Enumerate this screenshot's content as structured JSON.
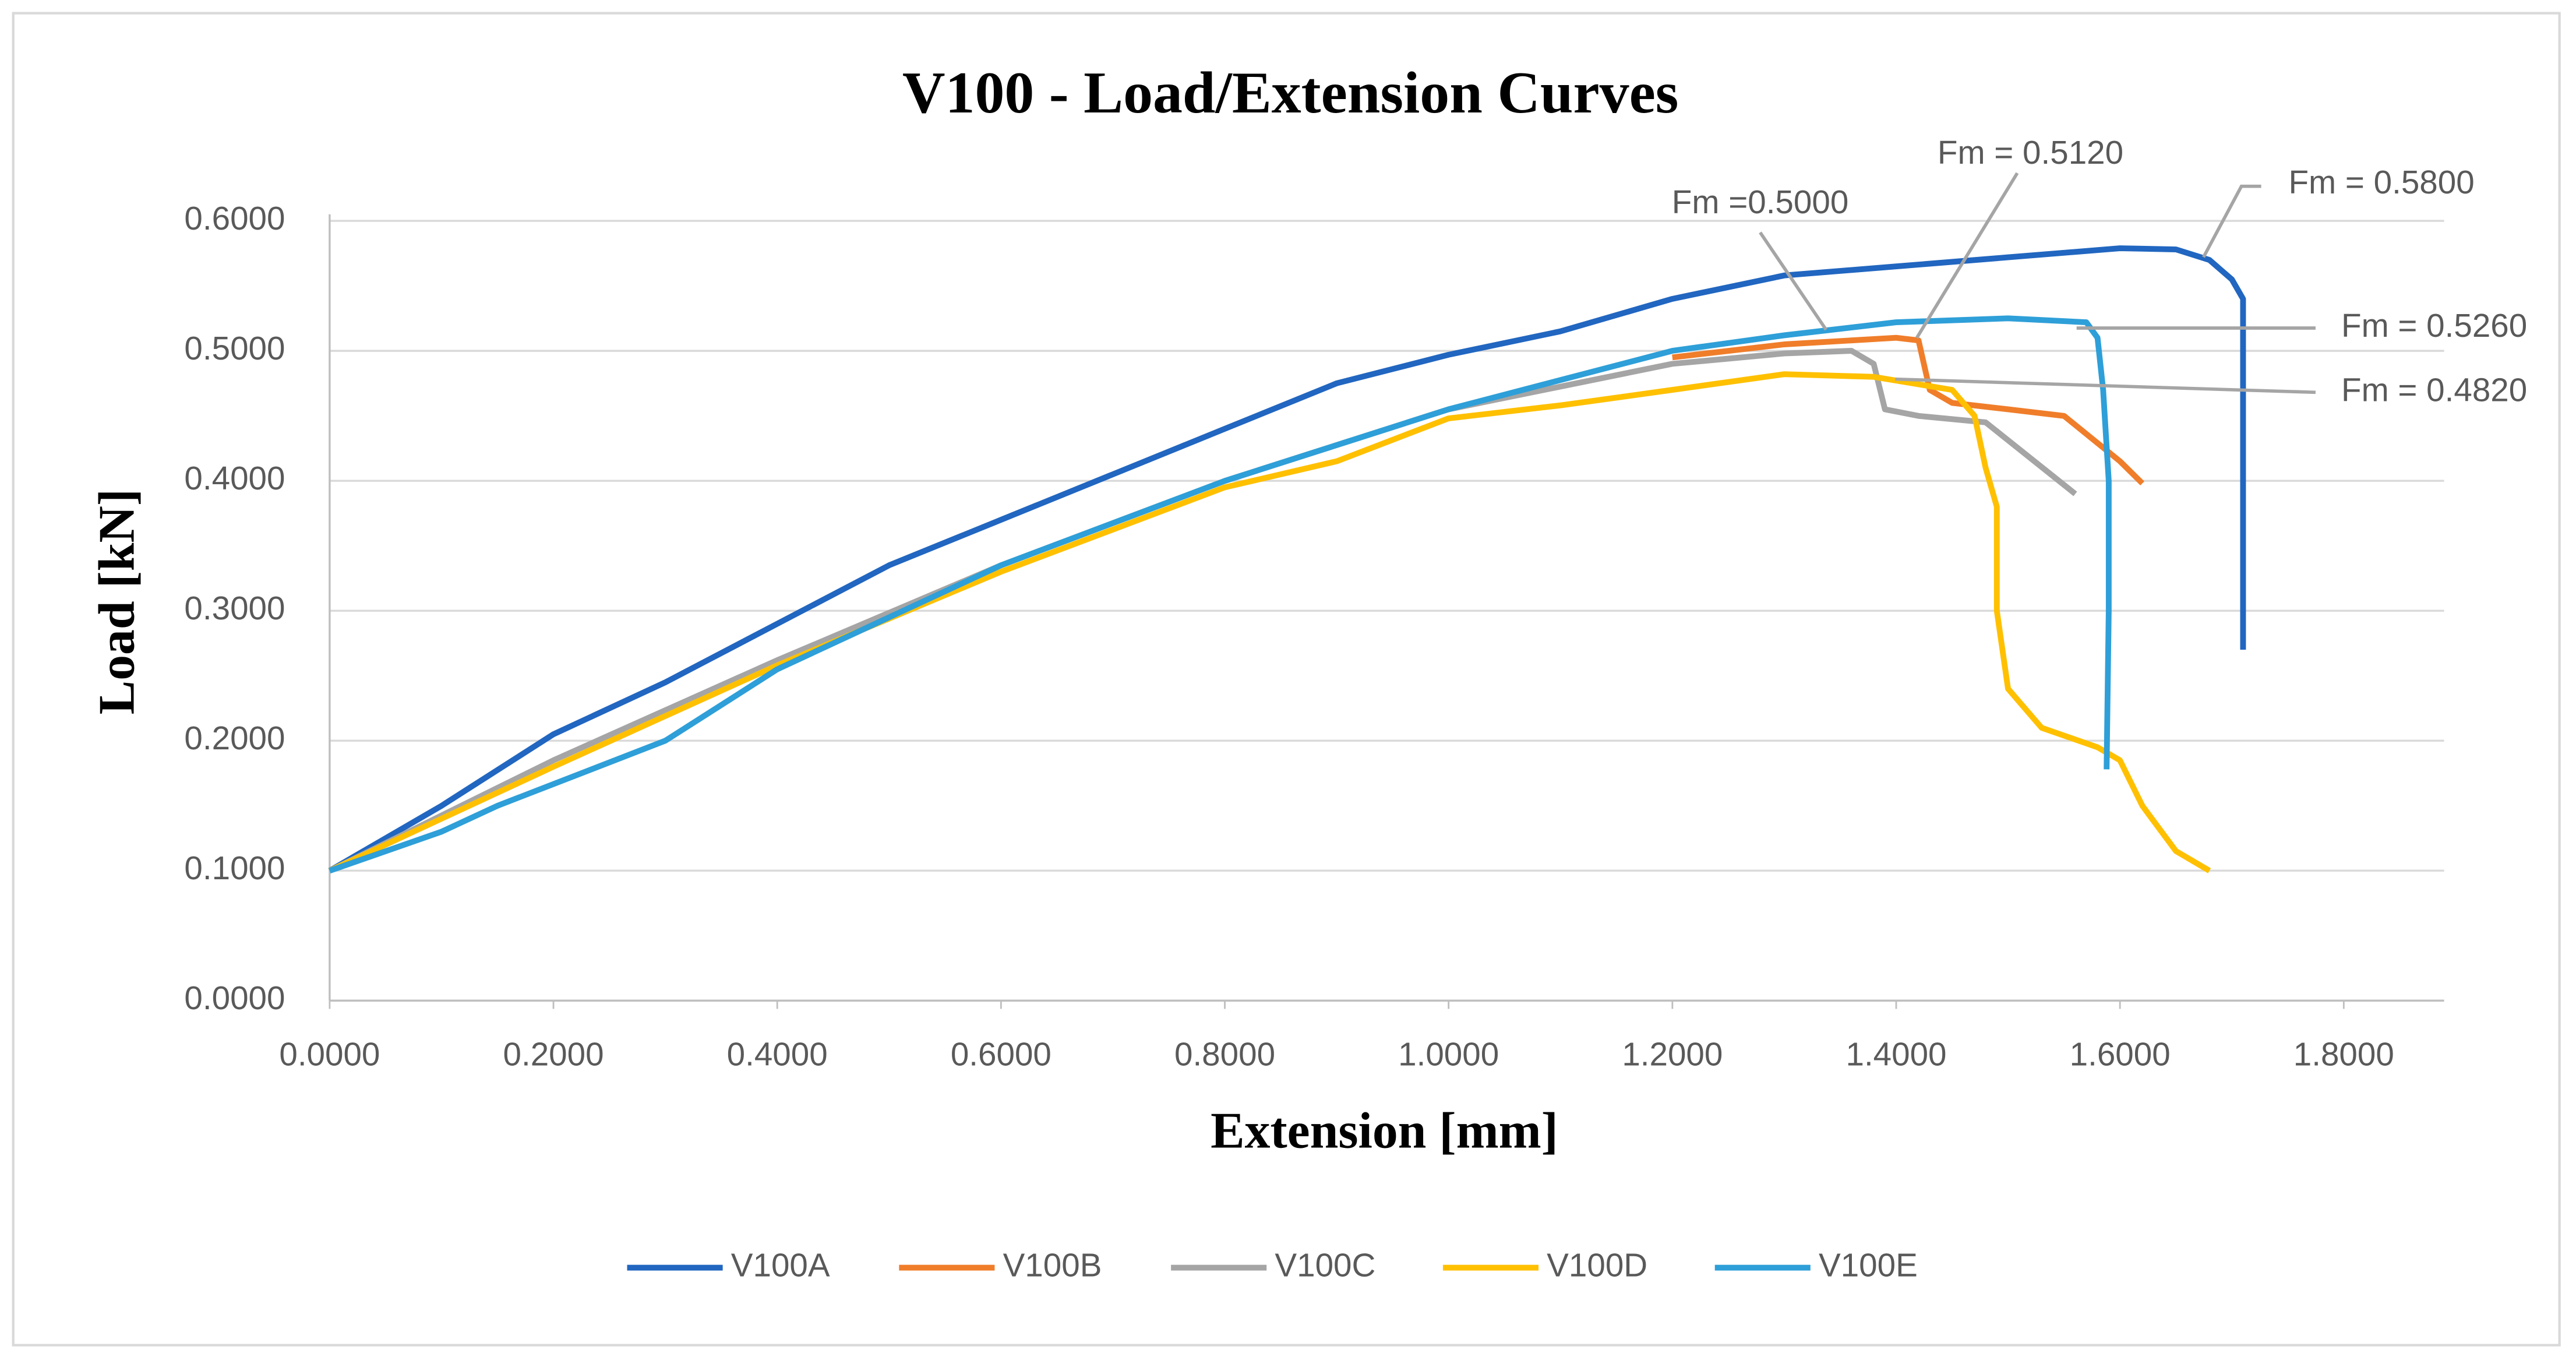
{
  "chart_data": {
    "type": "line",
    "title": "V100 - Load/Extension Curves",
    "x_label": "Extension [mm]",
    "y_label": "Load [kN]",
    "xlim": [
      0,
      1.9
    ],
    "ylim": [
      0,
      0.6
    ],
    "xticks": [
      {
        "value": 0,
        "label": "0.0000"
      },
      {
        "value": 0.2,
        "label": "0.2000"
      },
      {
        "value": 0.4,
        "label": "0.4000"
      },
      {
        "value": 0.6,
        "label": "0.6000"
      },
      {
        "value": 0.8,
        "label": "0.8000"
      },
      {
        "value": 1.0,
        "label": "1.0000"
      },
      {
        "value": 1.2,
        "label": "1.2000"
      },
      {
        "value": 1.4,
        "label": "1.4000"
      },
      {
        "value": 1.6,
        "label": "1.6000"
      },
      {
        "value": 1.8,
        "label": "1.8000"
      }
    ],
    "yticks": [
      {
        "value": 0,
        "label": "0.0000"
      },
      {
        "value": 0.1,
        "label": "0.1000"
      },
      {
        "value": 0.2,
        "label": "0.2000"
      },
      {
        "value": 0.3,
        "label": "0.3000"
      },
      {
        "value": 0.4,
        "label": "0.4000"
      },
      {
        "value": 0.5,
        "label": "0.5000"
      },
      {
        "value": 0.6,
        "label": "0.6000"
      }
    ],
    "grid": true,
    "legend": "bottom",
    "series": [
      {
        "name": "V100A",
        "color": "#2166c0",
        "x": [
          0,
          0.1,
          0.2,
          0.3,
          0.4,
          0.5,
          0.6,
          0.7,
          0.8,
          0.9,
          1.0,
          1.1,
          1.2,
          1.3,
          1.4,
          1.5,
          1.6,
          1.65,
          1.68,
          1.7,
          1.71,
          1.71
        ],
        "values": [
          0.1,
          0.15,
          0.205,
          0.245,
          0.29,
          0.335,
          0.37,
          0.405,
          0.44,
          0.475,
          0.497,
          0.515,
          0.54,
          0.558,
          0.565,
          0.572,
          0.579,
          0.578,
          0.57,
          0.555,
          0.54,
          0.27
        ]
      },
      {
        "name": "V100B",
        "color": "#f07d2a",
        "x": [
          1.2,
          1.3,
          1.4,
          1.42,
          1.43,
          1.45,
          1.5,
          1.55,
          1.6,
          1.62
        ],
        "values": [
          0.495,
          0.505,
          0.51,
          0.508,
          0.47,
          0.46,
          0.455,
          0.45,
          0.415,
          0.398
        ]
      },
      {
        "name": "V100C",
        "color": "#a5a5a5",
        "x": [
          0,
          0.2,
          0.4,
          0.6,
          0.8,
          1.0,
          1.2,
          1.3,
          1.36,
          1.38,
          1.39,
          1.42,
          1.48,
          1.56
        ],
        "values": [
          0.1,
          0.185,
          0.262,
          0.335,
          0.4,
          0.455,
          0.49,
          0.498,
          0.5,
          0.49,
          0.455,
          0.45,
          0.445,
          0.39
        ]
      },
      {
        "name": "V100D",
        "color": "#ffc000",
        "x": [
          0,
          0.1,
          0.2,
          0.4,
          0.6,
          0.8,
          0.9,
          1.0,
          1.1,
          1.2,
          1.3,
          1.38,
          1.45,
          1.47,
          1.48,
          1.49,
          1.49,
          1.5,
          1.53,
          1.58,
          1.6,
          1.62,
          1.65,
          1.68
        ],
        "values": [
          0.1,
          0.14,
          0.18,
          0.258,
          0.33,
          0.395,
          0.415,
          0.448,
          0.458,
          0.47,
          0.482,
          0.48,
          0.47,
          0.45,
          0.41,
          0.38,
          0.3,
          0.24,
          0.21,
          0.195,
          0.185,
          0.15,
          0.115,
          0.1
        ]
      },
      {
        "name": "V100E",
        "color": "#2e9fd8",
        "x": [
          0,
          0.1,
          0.15,
          0.3,
          0.4,
          0.6,
          0.8,
          1.0,
          1.2,
          1.3,
          1.4,
          1.5,
          1.57,
          1.58,
          1.585,
          1.59,
          1.59,
          1.588
        ],
        "values": [
          0.1,
          0.13,
          0.15,
          0.2,
          0.255,
          0.335,
          0.4,
          0.455,
          0.5,
          0.512,
          0.522,
          0.525,
          0.522,
          0.51,
          0.47,
          0.4,
          0.3,
          0.178
        ]
      }
    ],
    "annotations": [
      "Fm = 0.5800",
      "Fm = 0.5120",
      "Fm =0.5000",
      "Fm = 0.5260",
      "Fm = 0.4820"
    ]
  }
}
